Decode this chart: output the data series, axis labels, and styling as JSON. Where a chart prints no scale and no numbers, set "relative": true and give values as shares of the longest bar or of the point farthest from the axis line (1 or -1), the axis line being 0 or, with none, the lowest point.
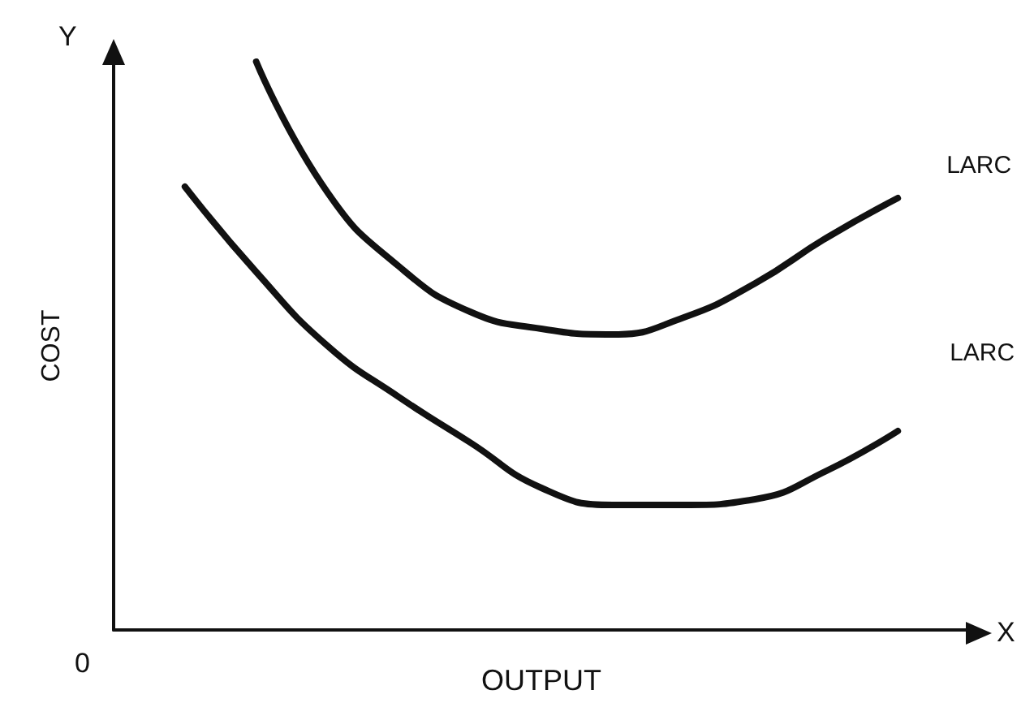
{
  "chart_data": {
    "type": "line",
    "relative": true,
    "xlabel": "OUTPUT",
    "ylabel": "COST",
    "annotations": [
      "Y",
      "X",
      "0"
    ],
    "categories": [
      null,
      null,
      null,
      null,
      null,
      null,
      null,
      null,
      null,
      null,
      null,
      null,
      null
    ],
    "series": [
      {
        "name": "LARC",
        "color": "#111111",
        "values": [
          null,
          null,
          1,
          0.77,
          0.64,
          0.56,
          0.53,
          0.52,
          0.55,
          0.61,
          0.69,
          0.76,
          null
        ]
      },
      {
        "name": "LARC",
        "color": "#111111",
        "values": [
          null,
          0.78,
          0.63,
          0.5,
          0.41,
          0.33,
          0.25,
          0.22,
          0.22,
          0.23,
          0.28,
          0.35,
          null
        ]
      }
    ],
    "marker": "none",
    "grid": false,
    "legend": false
  }
}
